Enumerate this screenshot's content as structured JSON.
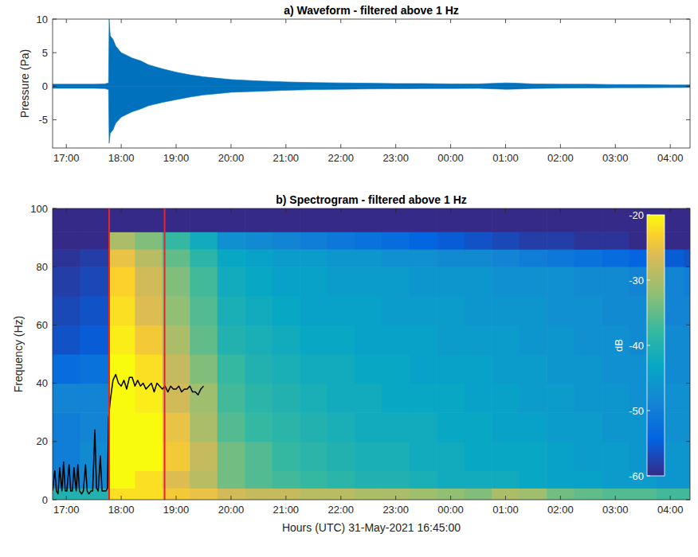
{
  "chart_data": [
    {
      "type": "area",
      "title": "a) Waveform - filtered above 1 Hz",
      "y_label": "Pressure (Pa)",
      "x": [
        16.75,
        17.0,
        17.25,
        17.5,
        17.7,
        17.77,
        17.78,
        17.8,
        17.85,
        17.9,
        18.0,
        18.1,
        18.2,
        18.35,
        18.5,
        18.75,
        19.0,
        19.25,
        19.5,
        19.75,
        20.0,
        20.5,
        21.0,
        21.5,
        22.0,
        22.5,
        23.0,
        23.5,
        24.0,
        24.5,
        25.0,
        25.2,
        25.5,
        26.0,
        26.5,
        27.0,
        27.5,
        28.0,
        28.36
      ],
      "series": [
        {
          "color": "#0072bd",
          "values": [
            0.3,
            0.3,
            0.3,
            0.3,
            0.35,
            0.5,
            10,
            7.5,
            7,
            6,
            5,
            4.6,
            4.2,
            3.8,
            3.2,
            2.6,
            2.1,
            1.7,
            1.4,
            1.2,
            1.0,
            0.8,
            0.65,
            0.55,
            0.5,
            0.45,
            0.4,
            0.4,
            0.35,
            0.35,
            0.5,
            0.45,
            0.35,
            0.3,
            0.3,
            0.25,
            0.25,
            0.2,
            0.2
          ]
        },
        {
          "color": "#0072bd",
          "values": [
            -0.3,
            -0.3,
            -0.3,
            -0.3,
            -0.35,
            -0.5,
            -8.5,
            -7,
            -6.5,
            -5.5,
            -4.6,
            -4.2,
            -3.8,
            -3.4,
            -2.9,
            -2.4,
            -2.0,
            -1.6,
            -1.3,
            -1.1,
            -0.9,
            -0.75,
            -0.6,
            -0.5,
            -0.45,
            -0.4,
            -0.38,
            -0.35,
            -0.33,
            -0.32,
            -0.45,
            -0.42,
            -0.33,
            -0.28,
            -0.26,
            -0.23,
            -0.22,
            -0.2,
            -0.18
          ]
        }
      ],
      "xlim": [
        16.75,
        28.36
      ],
      "xticks": [
        {
          "value": 17,
          "label": "17:00"
        },
        {
          "value": 18,
          "label": "18:00"
        },
        {
          "value": 19,
          "label": "19:00"
        },
        {
          "value": 20,
          "label": "20:00"
        },
        {
          "value": 21,
          "label": "21:00"
        },
        {
          "value": 22,
          "label": "22:00"
        },
        {
          "value": 23,
          "label": "23:00"
        },
        {
          "value": 24,
          "label": "00:00"
        },
        {
          "value": 25,
          "label": "01:00"
        },
        {
          "value": 26,
          "label": "02:00"
        },
        {
          "value": 27,
          "label": "03:00"
        },
        {
          "value": 28,
          "label": "04:00"
        }
      ],
      "ylim": [
        -9.2,
        10
      ],
      "yticks": [
        -5,
        0,
        5,
        10
      ]
    },
    {
      "type": "heatmap",
      "title": "b) Spectrogram - filtered above 1 Hz",
      "x_label": "Hours (UTC) 31-May-2021 16:45:00",
      "y_label": "Frequency (Hz)",
      "x_edges": [
        16.75,
        17.25,
        17.78,
        18.25,
        18.75,
        19.25,
        19.75,
        20.25,
        20.75,
        21.25,
        21.75,
        22.25,
        22.75,
        23.25,
        23.75,
        24.25,
        24.75,
        25.25,
        25.75,
        26.25,
        26.75,
        27.25,
        27.75,
        28.25,
        28.36
      ],
      "y_edges": [
        0,
        4,
        10,
        20,
        30,
        40,
        50,
        60,
        70,
        80,
        86,
        92,
        100
      ],
      "cells": [
        [
          -40,
          -50,
          -50,
          -50,
          -49,
          -53,
          -56,
          -57,
          -58,
          -59,
          -60,
          -60
        ],
        [
          -40,
          -48,
          -48,
          -49,
          -49,
          -52,
          -55,
          -56,
          -57,
          -58,
          -60,
          -60
        ],
        [
          -22,
          -20,
          -20,
          -20,
          -20,
          -20,
          -21,
          -22,
          -23,
          -25,
          -30,
          -60
        ],
        [
          -22,
          -22,
          -20,
          -20,
          -21,
          -22,
          -24,
          -26,
          -27,
          -29,
          -33,
          -60
        ],
        [
          -24,
          -26,
          -24,
          -25,
          -27,
          -28,
          -30,
          -32,
          -33,
          -35,
          -38,
          -60
        ],
        [
          -25,
          -29,
          -28,
          -30,
          -31,
          -33,
          -35,
          -36,
          -37,
          -39,
          -42,
          -60
        ],
        [
          -27,
          -34,
          -34,
          -36,
          -37,
          -38,
          -40,
          -41,
          -42,
          -43,
          -47,
          -60
        ],
        [
          -28,
          -36,
          -36,
          -38,
          -39,
          -40,
          -41,
          -42,
          -43,
          -44,
          -48,
          -60
        ],
        [
          -28,
          -37,
          -38,
          -39,
          -40,
          -41,
          -42,
          -43,
          -44,
          -45,
          -49,
          -60
        ],
        [
          -29,
          -38,
          -39,
          -40,
          -41,
          -42,
          -43,
          -44,
          -44,
          -45,
          -50,
          -60
        ],
        [
          -29,
          -39,
          -40,
          -41,
          -42,
          -42,
          -43,
          -44,
          -45,
          -46,
          -51,
          -60
        ],
        [
          -30,
          -40,
          -41,
          -42,
          -42,
          -43,
          -44,
          -44,
          -45,
          -46,
          -52,
          -60
        ],
        [
          -30,
          -40,
          -41,
          -42,
          -43,
          -43,
          -44,
          -45,
          -45,
          -47,
          -53,
          -60
        ],
        [
          -31,
          -41,
          -42,
          -42,
          -43,
          -44,
          -44,
          -45,
          -46,
          -47,
          -54,
          -60
        ],
        [
          -32,
          -42,
          -42,
          -43,
          -43,
          -44,
          -45,
          -45,
          -46,
          -48,
          -55,
          -60
        ],
        [
          -33,
          -42,
          -43,
          -43,
          -44,
          -44,
          -45,
          -46,
          -46,
          -48,
          -56,
          -60
        ],
        [
          -30,
          -42,
          -43,
          -44,
          -44,
          -45,
          -45,
          -46,
          -47,
          -49,
          -57,
          -60
        ],
        [
          -31,
          -43,
          -43,
          -44,
          -45,
          -45,
          -46,
          -46,
          -47,
          -50,
          -58,
          -60
        ],
        [
          -34,
          -44,
          -44,
          -45,
          -45,
          -46,
          -46,
          -47,
          -47,
          -51,
          -58,
          -60
        ],
        [
          -35,
          -44,
          -45,
          -45,
          -46,
          -46,
          -47,
          -47,
          -48,
          -52,
          -59,
          -60
        ],
        [
          -36,
          -45,
          -45,
          -46,
          -46,
          -47,
          -47,
          -48,
          -48,
          -53,
          -59,
          -60
        ],
        [
          -36,
          -45,
          -46,
          -46,
          -47,
          -47,
          -48,
          -48,
          -49,
          -54,
          -60,
          -60
        ],
        [
          -37,
          -46,
          -46,
          -47,
          -47,
          -48,
          -48,
          -49,
          -49,
          -55,
          -60,
          -60
        ],
        [
          -37,
          -46,
          -46,
          -47,
          -47,
          -48,
          -48,
          -49,
          -50,
          -56,
          -60,
          -60
        ]
      ],
      "colorbar": {
        "label": "dB",
        "lim": [
          -60,
          -20
        ],
        "ticks": [
          -20,
          -30,
          -40,
          -50,
          -60
        ]
      },
      "series": [
        {
          "type": "line",
          "color": "#000000",
          "x": [
            16.75,
            16.79,
            16.82,
            16.85,
            16.88,
            16.92,
            16.95,
            16.98,
            17.01,
            17.05,
            17.08,
            17.11,
            17.14,
            17.18,
            17.21,
            17.24,
            17.28,
            17.31,
            17.35,
            17.38,
            17.41,
            17.45,
            17.48,
            17.52,
            17.55,
            17.58,
            17.62,
            17.65,
            17.68,
            17.72,
            17.75,
            17.77,
            17.8,
            17.85,
            17.9,
            17.95,
            18.0,
            18.05,
            18.1,
            18.15,
            18.2,
            18.25,
            18.3,
            18.35,
            18.4,
            18.45,
            18.5,
            18.55,
            18.6,
            18.65,
            18.7,
            18.75,
            18.8,
            18.85,
            18.9,
            18.95,
            19.0,
            19.05,
            19.1,
            19.15,
            19.2,
            19.25,
            19.3,
            19.35,
            19.4,
            19.45,
            19.5
          ],
          "values": [
            3,
            10,
            3,
            2,
            11,
            3,
            13,
            3,
            3,
            12,
            3,
            3,
            11,
            3,
            12,
            3,
            2,
            3,
            12,
            3,
            2,
            3,
            3,
            24,
            4,
            3,
            15,
            3,
            3,
            3,
            4,
            28,
            34,
            41,
            43,
            40,
            39,
            41,
            38,
            42,
            42,
            39,
            41,
            39,
            40,
            38,
            39,
            40,
            37,
            40,
            39,
            38,
            39,
            37,
            39,
            38,
            38,
            39,
            37,
            38,
            38,
            39,
            37,
            37,
            36,
            38,
            39
          ]
        }
      ],
      "vlines": {
        "color": "#e8242a",
        "values": [
          17.78,
          18.79
        ]
      },
      "xlim": [
        16.75,
        28.36
      ],
      "xticks": [
        {
          "value": 17,
          "label": "17:00"
        },
        {
          "value": 18,
          "label": "18:00"
        },
        {
          "value": 19,
          "label": "19:00"
        },
        {
          "value": 20,
          "label": "20:00"
        },
        {
          "value": 21,
          "label": "21:00"
        },
        {
          "value": 22,
          "label": "22:00"
        },
        {
          "value": 23,
          "label": "23:00"
        },
        {
          "value": 24,
          "label": "00:00"
        },
        {
          "value": 25,
          "label": "01:00"
        },
        {
          "value": 26,
          "label": "02:00"
        },
        {
          "value": 27,
          "label": "03:00"
        },
        {
          "value": 28,
          "label": "04:00"
        }
      ],
      "ylim": [
        0,
        100
      ],
      "yticks": [
        0,
        20,
        40,
        60,
        80,
        100
      ]
    }
  ]
}
